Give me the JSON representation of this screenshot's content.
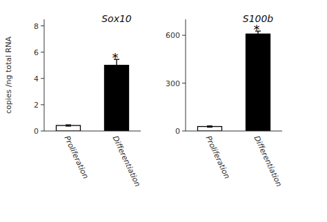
{
  "chart_data": [
    {
      "type": "bar",
      "title": "Sox10",
      "y_label": "copies /ng total RNA",
      "categories": [
        "Proliferation",
        "Differentiation"
      ],
      "values": [
        0.42,
        5.0
      ],
      "errors": [
        0.05,
        0.45
      ],
      "colors": [
        "white",
        "black"
      ],
      "ylim": [
        0,
        8.5
      ],
      "yticks": [
        0,
        2,
        4,
        6,
        8
      ],
      "annotations": [
        {
          "text": "*",
          "category": "Differentiation"
        }
      ]
    },
    {
      "type": "bar",
      "title": "S100b",
      "categories": [
        "Proliferation",
        "Differentiation"
      ],
      "values": [
        28,
        608
      ],
      "errors": [
        4,
        18
      ],
      "colors": [
        "white",
        "black"
      ],
      "ylim": [
        0,
        700
      ],
      "yticks": [
        0,
        300,
        600
      ],
      "annotations": [
        {
          "text": "*",
          "category": "Differentiation"
        }
      ]
    }
  ]
}
